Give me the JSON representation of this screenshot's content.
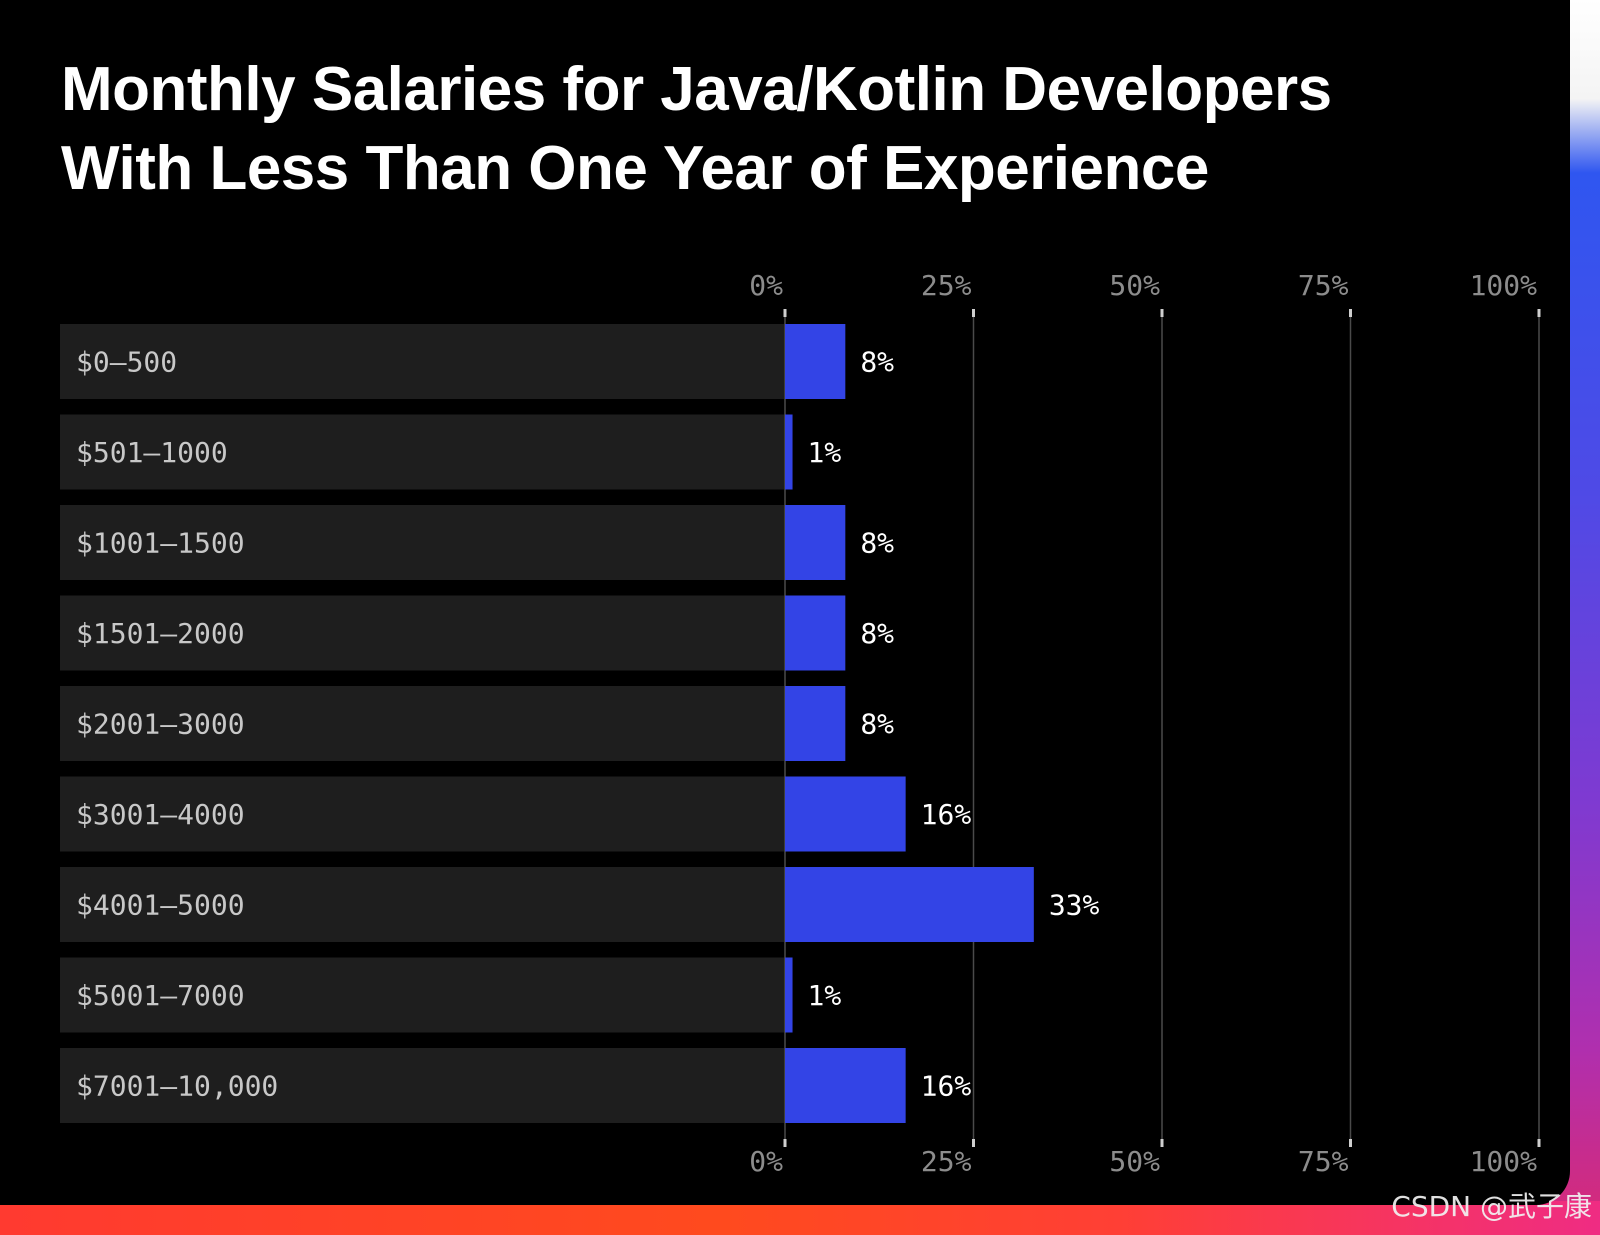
{
  "title_lines": [
    "Monthly Salaries for Java/Kotlin Developers",
    "With Less Than One Year of Experience"
  ],
  "watermark": "CSDN @武子康",
  "colors": {
    "background": "#000000",
    "row_background": "#1e1e1e",
    "bar": "#3344e6",
    "grid": "#4a4a4a",
    "tick_text": "#8c8c8c"
  },
  "chart_data": {
    "type": "bar",
    "orientation": "horizontal",
    "title": "Monthly Salaries for Java/Kotlin Developers With Less Than One Year of Experience",
    "categories": [
      "$0–500",
      "$501–1000",
      "$1001–1500",
      "$1501–2000",
      "$2001–3000",
      "$3001–4000",
      "$4001–5000",
      "$5001–7000",
      "$7001–10,000"
    ],
    "values": [
      8,
      1,
      8,
      8,
      8,
      16,
      33,
      1,
      16
    ],
    "value_labels": [
      "8%",
      "1%",
      "8%",
      "8%",
      "8%",
      "16%",
      "33%",
      "1%",
      "16%"
    ],
    "xlim": [
      0,
      100
    ],
    "ticks": [
      0,
      25,
      50,
      75,
      100
    ],
    "tick_labels": [
      "0%",
      "25%",
      "50%",
      "75%",
      "100%"
    ],
    "xlabel": "",
    "ylabel": "",
    "grid": true,
    "axis_labels_position": "top and bottom"
  }
}
